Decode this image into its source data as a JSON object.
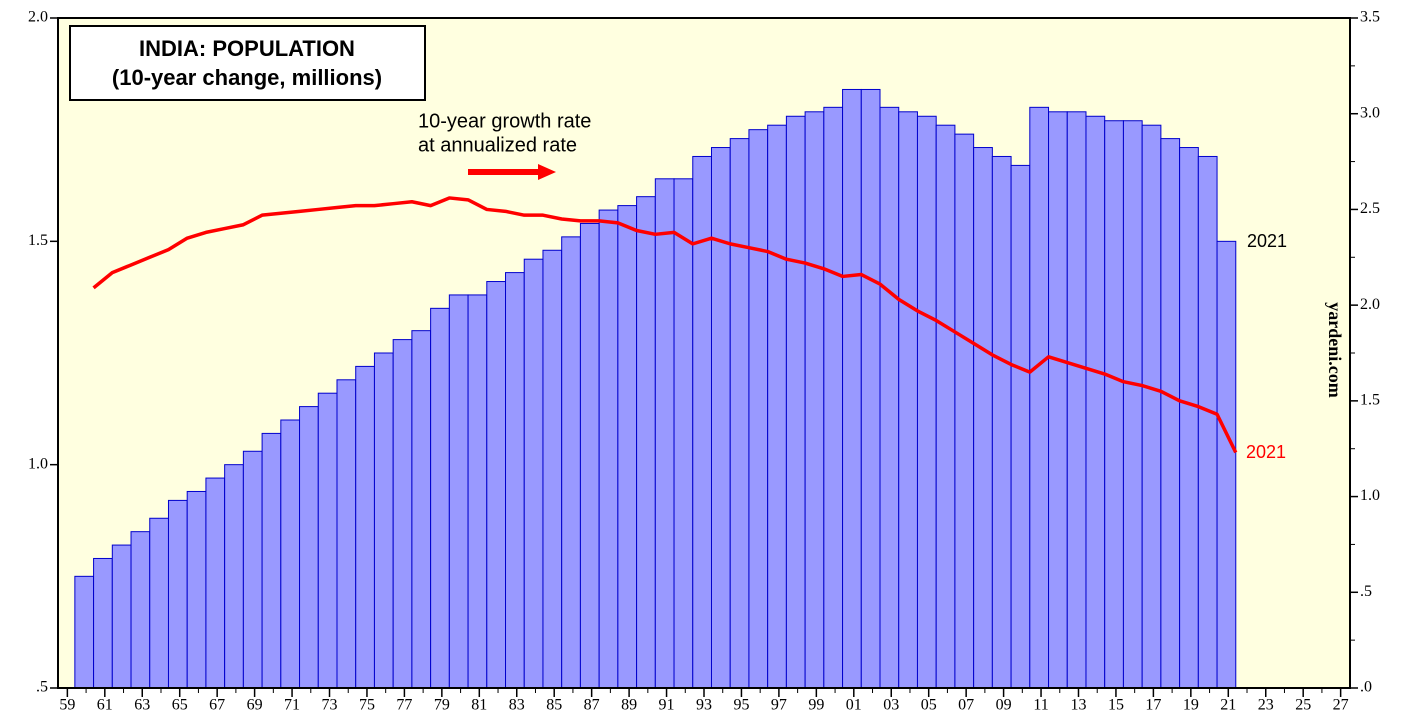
{
  "chart_data": {
    "type": "bar_line",
    "title": [
      "INDIA: POPULATION",
      "(10-year change, millions)"
    ],
    "annotation": [
      "10-year growth rate",
      "at annualized rate"
    ],
    "end_labels": [
      "2021",
      "2021"
    ],
    "source": "yardeni.com",
    "x": [
      1960,
      1961,
      1962,
      1963,
      1964,
      1965,
      1966,
      1967,
      1968,
      1969,
      1970,
      1971,
      1972,
      1973,
      1974,
      1975,
      1976,
      1977,
      1978,
      1979,
      1980,
      1981,
      1982,
      1983,
      1984,
      1985,
      1986,
      1987,
      1988,
      1989,
      1990,
      1991,
      1992,
      1993,
      1994,
      1995,
      1996,
      1997,
      1998,
      1999,
      2000,
      2001,
      2002,
      2003,
      2004,
      2005,
      2006,
      2007,
      2008,
      2009,
      2010,
      2011,
      2012,
      2013,
      2014,
      2015,
      2016,
      2017,
      2018,
      2019,
      2020,
      2021
    ],
    "series": [
      {
        "type": "bar",
        "color": "#9999ff",
        "axis": "y",
        "values": [
          0.75,
          0.79,
          0.82,
          0.85,
          0.88,
          0.92,
          0.94,
          0.97,
          1.0,
          1.03,
          1.07,
          1.1,
          1.13,
          1.16,
          1.19,
          1.22,
          1.25,
          1.28,
          1.3,
          1.35,
          1.38,
          1.38,
          1.41,
          1.43,
          1.46,
          1.48,
          1.51,
          1.54,
          1.57,
          1.58,
          1.6,
          1.64,
          1.64,
          1.69,
          1.71,
          1.73,
          1.75,
          1.76,
          1.78,
          1.79,
          1.8,
          1.84,
          1.84,
          1.8,
          1.79,
          1.78,
          1.76,
          1.74,
          1.71,
          1.69,
          1.67,
          1.8,
          1.79,
          1.79,
          1.78,
          1.77,
          1.77,
          1.76,
          1.73,
          1.71,
          1.69,
          1.5
        ]
      },
      {
        "type": "line",
        "color": "#ff0000",
        "axis": "y2",
        "values": [
          2.09,
          2.17,
          2.21,
          2.25,
          2.29,
          2.35,
          2.38,
          2.4,
          2.42,
          2.47,
          2.48,
          2.49,
          2.5,
          2.51,
          2.52,
          2.52,
          2.53,
          2.54,
          2.52,
          2.56,
          2.55,
          2.5,
          2.49,
          2.47,
          2.47,
          2.45,
          2.44,
          2.44,
          2.43,
          2.39,
          2.37,
          2.38,
          2.32,
          2.35,
          2.32,
          2.3,
          2.28,
          2.24,
          2.22,
          2.19,
          2.15,
          2.16,
          2.11,
          2.03,
          1.97,
          1.92,
          1.86,
          1.8,
          1.74,
          1.69,
          1.65,
          1.73,
          1.7,
          1.67,
          1.64,
          1.6,
          1.58,
          1.55,
          1.5,
          1.47,
          1.43,
          1.23
        ]
      }
    ],
    "xlim": [
      1958.5,
      2027.5
    ],
    "xticks": [
      {
        "value": 1959,
        "label": "59"
      },
      {
        "value": 1961,
        "label": "61"
      },
      {
        "value": 1963,
        "label": "63"
      },
      {
        "value": 1965,
        "label": "65"
      },
      {
        "value": 1967,
        "label": "67"
      },
      {
        "value": 1969,
        "label": "69"
      },
      {
        "value": 1971,
        "label": "71"
      },
      {
        "value": 1973,
        "label": "73"
      },
      {
        "value": 1975,
        "label": "75"
      },
      {
        "value": 1977,
        "label": "77"
      },
      {
        "value": 1979,
        "label": "79"
      },
      {
        "value": 1981,
        "label": "81"
      },
      {
        "value": 1983,
        "label": "83"
      },
      {
        "value": 1985,
        "label": "85"
      },
      {
        "value": 1987,
        "label": "87"
      },
      {
        "value": 1989,
        "label": "89"
      },
      {
        "value": 1991,
        "label": "91"
      },
      {
        "value": 1993,
        "label": "93"
      },
      {
        "value": 1995,
        "label": "95"
      },
      {
        "value": 1997,
        "label": "97"
      },
      {
        "value": 1999,
        "label": "99"
      },
      {
        "value": 2001,
        "label": "01"
      },
      {
        "value": 2003,
        "label": "03"
      },
      {
        "value": 2005,
        "label": "05"
      },
      {
        "value": 2007,
        "label": "07"
      },
      {
        "value": 2009,
        "label": "09"
      },
      {
        "value": 2011,
        "label": "11"
      },
      {
        "value": 2013,
        "label": "13"
      },
      {
        "value": 2015,
        "label": "15"
      },
      {
        "value": 2017,
        "label": "17"
      },
      {
        "value": 2019,
        "label": "19"
      },
      {
        "value": 2021,
        "label": "21"
      },
      {
        "value": 2023,
        "label": "23"
      },
      {
        "value": 2025,
        "label": "25"
      },
      {
        "value": 2027,
        "label": "27"
      }
    ],
    "ylim": [
      0.5,
      2.0
    ],
    "yticks": [
      {
        "value": 0.5,
        "label": ".5"
      },
      {
        "value": 1,
        "label": "1.0"
      },
      {
        "value": 1.5,
        "label": "1.5"
      },
      {
        "value": 2,
        "label": "2.0"
      }
    ],
    "y2lim": [
      0,
      3.5
    ],
    "y2ticks": [
      {
        "value": 0,
        "label": ".0"
      },
      {
        "value": 0.5,
        "label": ".5"
      },
      {
        "value": 1,
        "label": "1.0"
      },
      {
        "value": 1.5,
        "label": "1.5"
      },
      {
        "value": 2,
        "label": "2.0"
      },
      {
        "value": 2.5,
        "label": "2.5"
      },
      {
        "value": 3,
        "label": "3.0"
      },
      {
        "value": 3.5,
        "label": "3.5"
      }
    ]
  }
}
